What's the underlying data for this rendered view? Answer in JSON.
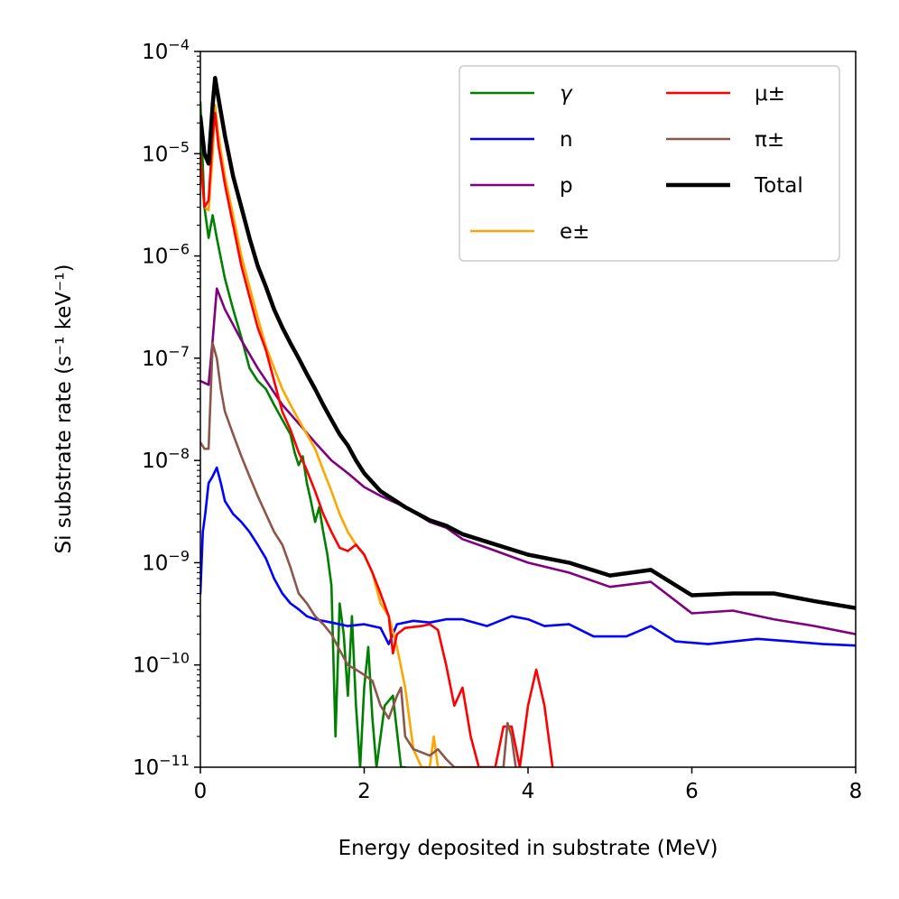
{
  "chart_data": {
    "type": "line",
    "title": "",
    "xlabel": "Energy deposited in substrate (MeV)",
    "ylabel": "Si substrate rate (s⁻¹ keV⁻¹)",
    "xlim": [
      0,
      8
    ],
    "ylim": [
      1e-11,
      0.0001
    ],
    "yscale": "log",
    "xticks": [
      0,
      2,
      4,
      6,
      8
    ],
    "xtick_labels": [
      "0",
      "2",
      "4",
      "6",
      "8"
    ],
    "yticks": [
      1e-11,
      1e-10,
      1e-09,
      1e-08,
      1e-07,
      1e-06,
      1e-05,
      0.0001
    ],
    "ytick_labels": [
      {
        "base": "10",
        "exp": "−11"
      },
      {
        "base": "10",
        "exp": "−10"
      },
      {
        "base": "10",
        "exp": "−9"
      },
      {
        "base": "10",
        "exp": "−8"
      },
      {
        "base": "10",
        "exp": "−7"
      },
      {
        "base": "10",
        "exp": "−6"
      },
      {
        "base": "10",
        "exp": "−5"
      },
      {
        "base": "10",
        "exp": "−4"
      }
    ],
    "legend_position": "top-right",
    "legend_columns": 2,
    "series": [
      {
        "name": "γ",
        "color": "#008000",
        "points": [
          [
            0,
            3.2e-05
          ],
          [
            0.05,
            3e-06
          ],
          [
            0.1,
            1.5e-06
          ],
          [
            0.15,
            2.5e-06
          ],
          [
            0.2,
            1.5e-06
          ],
          [
            0.3,
            6e-07
          ],
          [
            0.4,
            3e-07
          ],
          [
            0.5,
            1.6e-07
          ],
          [
            0.6,
            8e-08
          ],
          [
            0.7,
            6e-08
          ],
          [
            0.8,
            5e-08
          ],
          [
            0.9,
            3.5e-08
          ],
          [
            1.0,
            2.5e-08
          ],
          [
            1.1,
            1.8e-08
          ],
          [
            1.15,
            1.2e-08
          ],
          [
            1.2,
            9e-09
          ],
          [
            1.25,
            1.1e-08
          ],
          [
            1.3,
            6e-09
          ],
          [
            1.35,
            4e-09
          ],
          [
            1.4,
            2.5e-09
          ],
          [
            1.45,
            3.5e-09
          ],
          [
            1.5,
            2e-09
          ],
          [
            1.55,
            1.2e-09
          ],
          [
            1.6,
            6e-10
          ],
          [
            1.65,
            2e-11
          ],
          [
            1.7,
            4e-10
          ],
          [
            1.75,
            2e-10
          ],
          [
            1.8,
            5e-11
          ],
          [
            1.85,
            3e-10
          ],
          [
            1.9,
            4e-11
          ],
          [
            1.95,
            1e-11
          ],
          [
            2.0,
            6e-11
          ],
          [
            2.05,
            1.5e-10
          ],
          [
            2.1,
            3e-11
          ],
          [
            2.15,
            1e-11
          ],
          [
            2.25,
            4e-11
          ],
          [
            2.35,
            5e-11
          ],
          [
            2.45,
            1e-11
          ],
          [
            2.5,
            1e-11
          ]
        ]
      },
      {
        "name": "n",
        "color": "#0000ff",
        "points": [
          [
            0,
            5e-10
          ],
          [
            0.03,
            2e-09
          ],
          [
            0.06,
            3e-09
          ],
          [
            0.1,
            6e-09
          ],
          [
            0.15,
            7e-09
          ],
          [
            0.2,
            8.5e-09
          ],
          [
            0.25,
            6e-09
          ],
          [
            0.3,
            4e-09
          ],
          [
            0.4,
            3e-09
          ],
          [
            0.5,
            2.5e-09
          ],
          [
            0.6,
            2e-09
          ],
          [
            0.7,
            1.5e-09
          ],
          [
            0.8,
            1.1e-09
          ],
          [
            0.9,
            7e-10
          ],
          [
            1.0,
            5e-10
          ],
          [
            1.1,
            4e-10
          ],
          [
            1.2,
            3.5e-10
          ],
          [
            1.3,
            3e-10
          ],
          [
            1.4,
            2.8e-10
          ],
          [
            1.6,
            2.6e-10
          ],
          [
            1.8,
            2.4e-10
          ],
          [
            2.0,
            2.5e-10
          ],
          [
            2.2,
            2.3e-10
          ],
          [
            2.3,
            1.6e-10
          ],
          [
            2.4,
            2.5e-10
          ],
          [
            2.6,
            2.7e-10
          ],
          [
            2.8,
            2.6e-10
          ],
          [
            3.0,
            2.8e-10
          ],
          [
            3.2,
            2.8e-10
          ],
          [
            3.5,
            2.4e-10
          ],
          [
            3.8,
            3e-10
          ],
          [
            4.0,
            2.8e-10
          ],
          [
            4.2,
            2.4e-10
          ],
          [
            4.5,
            2.5e-10
          ],
          [
            4.8,
            1.9e-10
          ],
          [
            5.2,
            1.9e-10
          ],
          [
            5.5,
            2.4e-10
          ],
          [
            5.8,
            1.7e-10
          ],
          [
            6.2,
            1.6e-10
          ],
          [
            6.8,
            1.8e-10
          ],
          [
            7.2,
            1.7e-10
          ],
          [
            7.6,
            1.6e-10
          ],
          [
            8.0,
            1.55e-10
          ]
        ]
      },
      {
        "name": "p",
        "color": "#800080",
        "points": [
          [
            0,
            6e-08
          ],
          [
            0.1,
            5.5e-08
          ],
          [
            0.15,
            1.5e-07
          ],
          [
            0.2,
            4.8e-07
          ],
          [
            0.3,
            3e-07
          ],
          [
            0.5,
            1.5e-07
          ],
          [
            0.7,
            8e-08
          ],
          [
            1.0,
            3.5e-08
          ],
          [
            1.2,
            2.3e-08
          ],
          [
            1.4,
            1.5e-08
          ],
          [
            1.6,
            1e-08
          ],
          [
            1.8,
            7.5e-09
          ],
          [
            2.0,
            5.5e-09
          ],
          [
            2.2,
            4.5e-09
          ],
          [
            2.5,
            3.5e-09
          ],
          [
            2.8,
            2.5e-09
          ],
          [
            3.0,
            2.2e-09
          ],
          [
            3.2,
            1.7e-09
          ],
          [
            3.5,
            1.4e-09
          ],
          [
            4.0,
            1e-09
          ],
          [
            4.5,
            8e-10
          ],
          [
            5.0,
            5.8e-10
          ],
          [
            5.5,
            6.5e-10
          ],
          [
            6.0,
            3.2e-10
          ],
          [
            6.5,
            3.4e-10
          ],
          [
            7.0,
            2.8e-10
          ],
          [
            7.5,
            2.4e-10
          ],
          [
            8.0,
            2e-10
          ]
        ]
      },
      {
        "name": "e±",
        "color": "#ffa500",
        "points": [
          [
            0,
            8e-06
          ],
          [
            0.05,
            3e-06
          ],
          [
            0.1,
            2.8e-06
          ],
          [
            0.15,
            1e-05
          ],
          [
            0.18,
            3e-05
          ],
          [
            0.22,
            1.5e-05
          ],
          [
            0.3,
            6e-06
          ],
          [
            0.4,
            2.5e-06
          ],
          [
            0.5,
            1e-06
          ],
          [
            0.6,
            5e-07
          ],
          [
            0.7,
            2.5e-07
          ],
          [
            0.8,
            1.3e-07
          ],
          [
            0.9,
            8e-08
          ],
          [
            1.0,
            5e-08
          ],
          [
            1.1,
            3.5e-08
          ],
          [
            1.2,
            2.5e-08
          ],
          [
            1.3,
            1.8e-08
          ],
          [
            1.4,
            1.3e-08
          ],
          [
            1.5,
            8e-09
          ],
          [
            1.6,
            5e-09
          ],
          [
            1.7,
            3e-09
          ],
          [
            1.8,
            2e-09
          ],
          [
            1.9,
            1.5e-09
          ],
          [
            2.0,
            1.2e-09
          ],
          [
            2.1,
            8e-10
          ],
          [
            2.2,
            4e-10
          ],
          [
            2.3,
            3e-10
          ],
          [
            2.4,
            1.5e-10
          ],
          [
            2.5,
            6e-11
          ],
          [
            2.6,
            1.5e-11
          ],
          [
            2.7,
            1e-11
          ],
          [
            2.8,
            1e-11
          ],
          [
            2.85,
            2e-11
          ],
          [
            2.9,
            1e-11
          ],
          [
            3.0,
            1e-11
          ]
        ]
      },
      {
        "name": "μ±",
        "color": "#ff0000",
        "points": [
          [
            0,
            1e-05
          ],
          [
            0.05,
            3e-06
          ],
          [
            0.1,
            3.5e-06
          ],
          [
            0.15,
            1.5e-05
          ],
          [
            0.18,
            2.5e-05
          ],
          [
            0.22,
            1.2e-05
          ],
          [
            0.3,
            5e-06
          ],
          [
            0.4,
            2e-06
          ],
          [
            0.5,
            8e-07
          ],
          [
            0.6,
            4e-07
          ],
          [
            0.7,
            2e-07
          ],
          [
            0.8,
            1.2e-07
          ],
          [
            0.9,
            6e-08
          ],
          [
            1.0,
            3e-08
          ],
          [
            1.1,
            2e-08
          ],
          [
            1.2,
            1.2e-08
          ],
          [
            1.3,
            8e-09
          ],
          [
            1.4,
            5e-09
          ],
          [
            1.5,
            3e-09
          ],
          [
            1.6,
            2e-09
          ],
          [
            1.7,
            1.4e-09
          ],
          [
            1.8,
            1.3e-09
          ],
          [
            1.9,
            1.5e-09
          ],
          [
            2.0,
            1.2e-09
          ],
          [
            2.1,
            8e-10
          ],
          [
            2.2,
            5e-10
          ],
          [
            2.3,
            3e-10
          ],
          [
            2.35,
            1.3e-10
          ],
          [
            2.4,
            2e-10
          ],
          [
            2.5,
            2.3e-10
          ],
          [
            2.7,
            2.4e-10
          ],
          [
            2.8,
            2.5e-10
          ],
          [
            2.9,
            2.2e-10
          ],
          [
            3.0,
            1e-10
          ],
          [
            3.1,
            4e-11
          ],
          [
            3.2,
            6e-11
          ],
          [
            3.3,
            2e-11
          ],
          [
            3.4,
            1e-11
          ],
          [
            3.6,
            1e-11
          ],
          [
            3.7,
            2.5e-11
          ],
          [
            3.8,
            2.5e-11
          ],
          [
            3.9,
            1e-11
          ],
          [
            4.0,
            4e-11
          ],
          [
            4.1,
            9e-11
          ],
          [
            4.2,
            4e-11
          ],
          [
            4.3,
            1e-11
          ]
        ]
      },
      {
        "name": "π±",
        "color": "#8c564b",
        "points": [
          [
            0,
            1.5e-08
          ],
          [
            0.05,
            1.3e-08
          ],
          [
            0.1,
            1.3e-08
          ],
          [
            0.15,
            1.4e-07
          ],
          [
            0.2,
            1e-07
          ],
          [
            0.25,
            5e-08
          ],
          [
            0.3,
            3e-08
          ],
          [
            0.4,
            1.8e-08
          ],
          [
            0.5,
            1.1e-08
          ],
          [
            0.6,
            7e-09
          ],
          [
            0.7,
            4.5e-09
          ],
          [
            0.8,
            3e-09
          ],
          [
            0.9,
            2e-09
          ],
          [
            1.0,
            1.5e-09
          ],
          [
            1.1,
            9e-10
          ],
          [
            1.2,
            5e-10
          ],
          [
            1.3,
            4e-10
          ],
          [
            1.4,
            3e-10
          ],
          [
            1.5,
            2.5e-10
          ],
          [
            1.6,
            2e-10
          ],
          [
            1.7,
            1.4e-10
          ],
          [
            1.8,
            1e-10
          ],
          [
            1.9,
            9e-11
          ],
          [
            2.0,
            8e-11
          ],
          [
            2.1,
            7e-11
          ],
          [
            2.2,
            4e-11
          ],
          [
            2.3,
            3e-11
          ],
          [
            2.4,
            5e-11
          ],
          [
            2.45,
            6e-11
          ],
          [
            2.5,
            2e-11
          ],
          [
            2.6,
            1.5e-11
          ],
          [
            2.8,
            1.3e-11
          ],
          [
            2.9,
            1.5e-11
          ],
          [
            3.0,
            1.2e-11
          ],
          [
            3.1,
            1e-11
          ],
          [
            3.7,
            1e-11
          ],
          [
            3.75,
            2.7e-11
          ],
          [
            3.8,
            2e-11
          ],
          [
            3.85,
            1e-11
          ]
        ]
      },
      {
        "name": "Total",
        "color": "#000000",
        "points": [
          [
            0,
            2.3e-05
          ],
          [
            0.05,
            1e-05
          ],
          [
            0.1,
            8e-06
          ],
          [
            0.15,
            3e-05
          ],
          [
            0.18,
            5.5e-05
          ],
          [
            0.22,
            3.5e-05
          ],
          [
            0.3,
            1.5e-05
          ],
          [
            0.4,
            6e-06
          ],
          [
            0.5,
            3e-06
          ],
          [
            0.6,
            1.5e-06
          ],
          [
            0.7,
            8e-07
          ],
          [
            0.8,
            5e-07
          ],
          [
            0.9,
            3e-07
          ],
          [
            1.0,
            2e-07
          ],
          [
            1.1,
            1.4e-07
          ],
          [
            1.2,
            1e-07
          ],
          [
            1.3,
            7e-08
          ],
          [
            1.4,
            5e-08
          ],
          [
            1.5,
            3.5e-08
          ],
          [
            1.6,
            2.5e-08
          ],
          [
            1.7,
            1.8e-08
          ],
          [
            1.8,
            1.4e-08
          ],
          [
            1.9,
            1e-08
          ],
          [
            2.0,
            7.5e-09
          ],
          [
            2.2,
            5e-09
          ],
          [
            2.5,
            3.5e-09
          ],
          [
            2.8,
            2.6e-09
          ],
          [
            3.0,
            2.3e-09
          ],
          [
            3.2,
            1.9e-09
          ],
          [
            3.5,
            1.6e-09
          ],
          [
            4.0,
            1.2e-09
          ],
          [
            4.5,
            1e-09
          ],
          [
            5.0,
            7.5e-10
          ],
          [
            5.5,
            8.5e-10
          ],
          [
            6.0,
            4.8e-10
          ],
          [
            6.5,
            5e-10
          ],
          [
            7.0,
            5e-10
          ],
          [
            7.5,
            4.2e-10
          ],
          [
            8.0,
            3.6e-10
          ]
        ]
      }
    ]
  }
}
